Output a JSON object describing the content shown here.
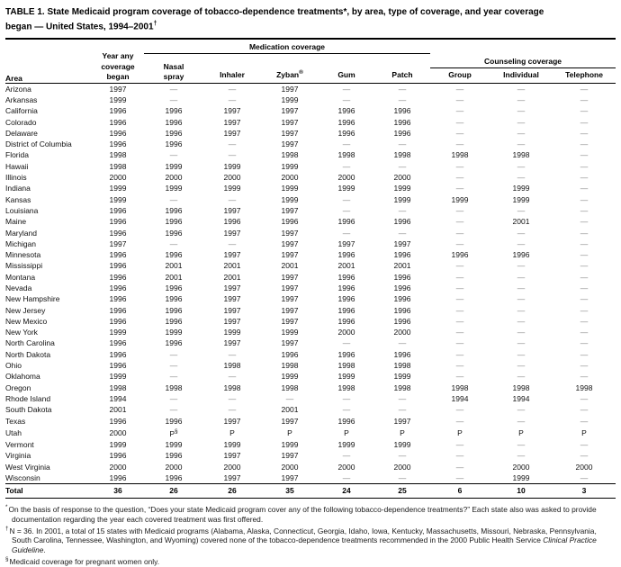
{
  "title": {
    "line1": "TABLE 1. State Medicaid program coverage of tobacco-dependence treatments*, by area, type of coverage, and year coverage",
    "line2": "began — United States, 1994–2001",
    "line2_sup": "†"
  },
  "table": {
    "spanners": {
      "medication": "Medication coverage",
      "counseling": "Counseling coverage"
    },
    "headers": {
      "area": "Area",
      "year_line1": "Year any",
      "year_line2": "coverage",
      "year_line3": "began",
      "nasal_line1": "Nasal",
      "nasal_line2": "spray",
      "inhaler": "Inhaler",
      "zyban": "Zyban",
      "zyban_sup": "®",
      "gum": "Gum",
      "patch": "Patch",
      "group": "Group",
      "individual": "Individual",
      "telephone": "Telephone"
    },
    "rows": [
      {
        "area": "Arizona",
        "values": [
          "1997",
          "—",
          "—",
          "1997",
          "—",
          "—",
          "—",
          "—",
          "—"
        ]
      },
      {
        "area": "Arkansas",
        "values": [
          "1999",
          "—",
          "—",
          "1999",
          "—",
          "—",
          "—",
          "—",
          "—"
        ]
      },
      {
        "area": "California",
        "values": [
          "1996",
          "1996",
          "1997",
          "1997",
          "1996",
          "1996",
          "—",
          "—",
          "—"
        ]
      },
      {
        "area": "Colorado",
        "values": [
          "1996",
          "1996",
          "1997",
          "1997",
          "1996",
          "1996",
          "—",
          "—",
          "—"
        ]
      },
      {
        "area": "Delaware",
        "values": [
          "1996",
          "1996",
          "1997",
          "1997",
          "1996",
          "1996",
          "—",
          "—",
          "—"
        ]
      },
      {
        "area": "District of Columbia",
        "values": [
          "1996",
          "1996",
          "—",
          "1997",
          "—",
          "—",
          "—",
          "—",
          "—"
        ]
      },
      {
        "area": "Florida",
        "values": [
          "1998",
          "—",
          "—",
          "1998",
          "1998",
          "1998",
          "1998",
          "1998",
          "—"
        ]
      },
      {
        "area": "Hawaii",
        "values": [
          "1998",
          "1999",
          "1999",
          "1999",
          "—",
          "—",
          "—",
          "—",
          "—"
        ]
      },
      {
        "area": "Illinois",
        "values": [
          "2000",
          "2000",
          "2000",
          "2000",
          "2000",
          "2000",
          "—",
          "—",
          "—"
        ]
      },
      {
        "area": "Indiana",
        "values": [
          "1999",
          "1999",
          "1999",
          "1999",
          "1999",
          "1999",
          "—",
          "1999",
          "—"
        ]
      },
      {
        "area": "Kansas",
        "values": [
          "1999",
          "—",
          "—",
          "1999",
          "—",
          "1999",
          "1999",
          "1999",
          "—"
        ]
      },
      {
        "area": "Louisiana",
        "values": [
          "1996",
          "1996",
          "1997",
          "1997",
          "—",
          "—",
          "—",
          "—",
          "—"
        ]
      },
      {
        "area": "Maine",
        "values": [
          "1996",
          "1996",
          "1996",
          "1996",
          "1996",
          "1996",
          "—",
          "2001",
          "—"
        ]
      },
      {
        "area": "Maryland",
        "values": [
          "1996",
          "1996",
          "1997",
          "1997",
          "—",
          "—",
          "—",
          "—",
          "—"
        ]
      },
      {
        "area": "Michigan",
        "values": [
          "1997",
          "—",
          "—",
          "1997",
          "1997",
          "1997",
          "—",
          "—",
          "—"
        ]
      },
      {
        "area": "Minnesota",
        "values": [
          "1996",
          "1996",
          "1997",
          "1997",
          "1996",
          "1996",
          "1996",
          "1996",
          "—"
        ]
      },
      {
        "area": "Mississippi",
        "values": [
          "1996",
          "2001",
          "2001",
          "2001",
          "2001",
          "2001",
          "—",
          "—",
          "—"
        ]
      },
      {
        "area": "Montana",
        "values": [
          "1996",
          "2001",
          "2001",
          "1997",
          "1996",
          "1996",
          "—",
          "—",
          "—"
        ]
      },
      {
        "area": "Nevada",
        "values": [
          "1996",
          "1996",
          "1997",
          "1997",
          "1996",
          "1996",
          "—",
          "—",
          "—"
        ]
      },
      {
        "area": "New Hampshire",
        "values": [
          "1996",
          "1996",
          "1997",
          "1997",
          "1996",
          "1996",
          "—",
          "—",
          "—"
        ]
      },
      {
        "area": "New Jersey",
        "values": [
          "1996",
          "1996",
          "1997",
          "1997",
          "1996",
          "1996",
          "—",
          "—",
          "—"
        ]
      },
      {
        "area": "New Mexico",
        "values": [
          "1996",
          "1996",
          "1997",
          "1997",
          "1996",
          "1996",
          "—",
          "—",
          "—"
        ]
      },
      {
        "area": "New York",
        "values": [
          "1999",
          "1999",
          "1999",
          "1999",
          "2000",
          "2000",
          "—",
          "—",
          "—"
        ]
      },
      {
        "area": "North Carolina",
        "values": [
          "1996",
          "1996",
          "1997",
          "1997",
          "—",
          "—",
          "—",
          "—",
          "—"
        ]
      },
      {
        "area": "North Dakota",
        "values": [
          "1996",
          "—",
          "—",
          "1996",
          "1996",
          "1996",
          "—",
          "—",
          "—"
        ]
      },
      {
        "area": "Ohio",
        "values": [
          "1996",
          "—",
          "1998",
          "1998",
          "1998",
          "1998",
          "—",
          "—",
          "—"
        ]
      },
      {
        "area": "Oklahoma",
        "values": [
          "1999",
          "—",
          "—",
          "1999",
          "1999",
          "1999",
          "—",
          "—",
          "—"
        ]
      },
      {
        "area": "Oregon",
        "values": [
          "1998",
          "1998",
          "1998",
          "1998",
          "1998",
          "1998",
          "1998",
          "1998",
          "1998"
        ]
      },
      {
        "area": "Rhode Island",
        "values": [
          "1994",
          "—",
          "—",
          "—",
          "—",
          "—",
          "1994",
          "1994",
          "—"
        ]
      },
      {
        "area": "South Dakota",
        "values": [
          "2001",
          "—",
          "—",
          "2001",
          "—",
          "—",
          "—",
          "—",
          "—"
        ]
      },
      {
        "area": "Texas",
        "values": [
          "1996",
          "1996",
          "1997",
          "1997",
          "1996",
          "1997",
          "—",
          "—",
          "—"
        ]
      },
      {
        "area": "Utah",
        "values": [
          "2000",
          "P§",
          "P",
          "P",
          "P",
          "P",
          "P",
          "P",
          "P"
        ]
      },
      {
        "area": "Vermont",
        "values": [
          "1999",
          "1999",
          "1999",
          "1999",
          "1999",
          "1999",
          "—",
          "—",
          "—"
        ]
      },
      {
        "area": "Virginia",
        "values": [
          "1996",
          "1996",
          "1997",
          "1997",
          "—",
          "—",
          "—",
          "—",
          "—"
        ]
      },
      {
        "area": "West Virginia",
        "values": [
          "2000",
          "2000",
          "2000",
          "2000",
          "2000",
          "2000",
          "—",
          "2000",
          "2000"
        ]
      },
      {
        "area": "Wisconsin",
        "values": [
          "1996",
          "1996",
          "1997",
          "1997",
          "—",
          "—",
          "—",
          "1999",
          "—"
        ]
      }
    ],
    "total": {
      "label": "Total",
      "values": [
        "36",
        "26",
        "26",
        "35",
        "24",
        "25",
        "6",
        "10",
        "3"
      ]
    }
  },
  "footnotes": {
    "f1": {
      "marker": "*",
      "text": "On the basis of response to the question, “Does your state Medicaid program cover any of the following tobacco-dependence treatments?” Each state also was asked to provide documentation regarding the year each covered treatment was first offered."
    },
    "f2": {
      "marker": "†",
      "text_before": "N = 36. In 2001, a total of 15 states with Medicaid programs (Alabama, Alaska, Connecticut, Georgia, Idaho, Iowa, Kentucky, Massachusetts, Missouri, Nebraska, Pennsylvania, South Carolina, Tennessee, Washington, and Wyoming) covered none of the tobacco-dependence treatments recommended in the 2000 Public Health Service ",
      "italic": "Clinical Practice Guideline",
      "text_after": "."
    },
    "f3": {
      "marker": "§",
      "text": "Medicaid coverage for pregnant women only."
    }
  }
}
